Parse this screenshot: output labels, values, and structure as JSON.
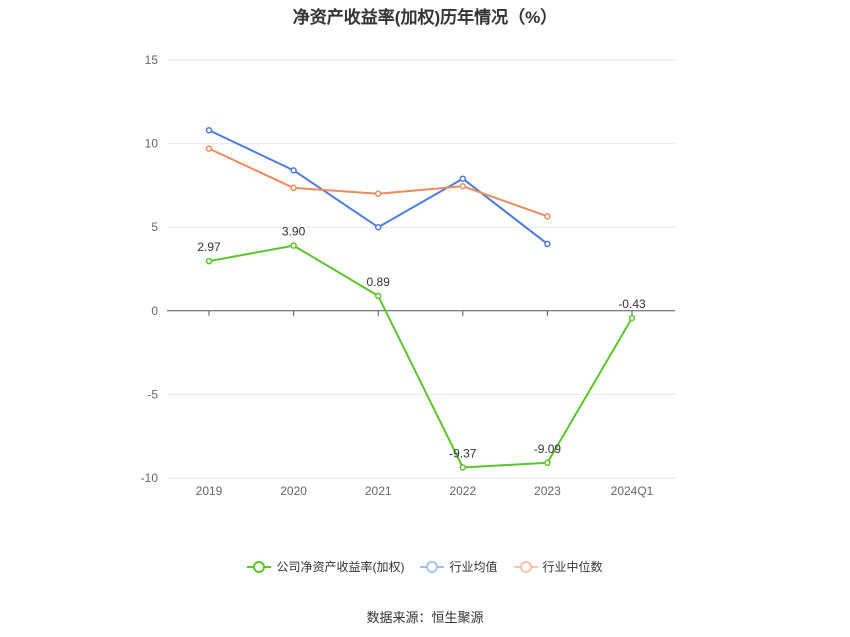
{
  "chart_data": {
    "type": "line",
    "title": "净资产收益率(加权)历年情况（%）",
    "categories": [
      "2019",
      "2020",
      "2021",
      "2022",
      "2023",
      "2024Q1"
    ],
    "ylim": [
      -10,
      15
    ],
    "yticks": [
      15,
      10,
      5,
      0,
      -5,
      -10
    ],
    "grid": true,
    "legend_position": "bottom",
    "series": [
      {
        "name": "公司净资产收益率(加权)",
        "color": "#5ac52c",
        "values": [
          2.97,
          3.9,
          0.89,
          -9.37,
          -9.09,
          -0.43
        ],
        "labels": [
          "2.97",
          "3.90",
          "0.89",
          "-9.37",
          "-9.09",
          "-0.43"
        ]
      },
      {
        "name": "行业均值",
        "color": "#4a7de0",
        "values": [
          10.8,
          8.4,
          5.0,
          7.9,
          4.0,
          null
        ]
      },
      {
        "name": "行业中位数",
        "color": "#f08a5d",
        "values": [
          9.7,
          7.35,
          7.0,
          7.45,
          5.65,
          null
        ]
      }
    ]
  },
  "source": "数据来源：恒生聚源"
}
